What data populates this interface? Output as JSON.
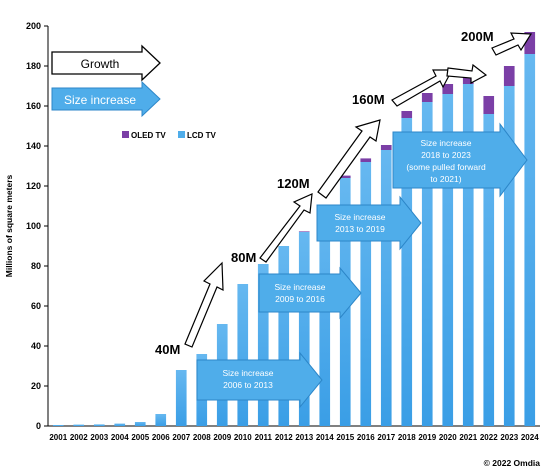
{
  "chart_data": {
    "type": "bar",
    "stacked": true,
    "title": "",
    "xlabel": "",
    "ylabel": "Millions of square meters",
    "ylim": [
      0,
      200
    ],
    "yticks": [
      0,
      20,
      40,
      60,
      80,
      100,
      120,
      140,
      160,
      180,
      200
    ],
    "categories": [
      "2001",
      "2002",
      "2003",
      "2004",
      "2005",
      "2006",
      "2007",
      "2008",
      "2009",
      "2010",
      "2011",
      "2012",
      "2013",
      "2014",
      "2015",
      "2016",
      "2017",
      "2018",
      "2019",
      "2020",
      "2021",
      "2022",
      "2023",
      "2024"
    ],
    "series": [
      {
        "name": "LCD TV",
        "color": "#4FADEA",
        "values": [
          0.5,
          0.7,
          0.8,
          1.2,
          2.0,
          6.0,
          28,
          36,
          51,
          71,
          81,
          90,
          97,
          110,
          124,
          132,
          138,
          154,
          162,
          166,
          171,
          156,
          170,
          186
        ]
      },
      {
        "name": "OLED TV",
        "color": "#7B3FA6",
        "values": [
          0,
          0,
          0,
          0,
          0,
          0,
          0,
          0,
          0,
          0,
          0,
          0,
          0.3,
          0.5,
          1.2,
          1.8,
          2.5,
          3.5,
          4.5,
          5,
          4,
          9,
          10,
          11
        ]
      }
    ],
    "legend": {
      "position": "top-left",
      "items": [
        "OLED TV",
        "LCD TV"
      ]
    },
    "grid": false
  },
  "annotations": {
    "growth_label": "Growth",
    "size_increase_label": "Size increase",
    "milestones": [
      "40M",
      "80M",
      "120M",
      "160M",
      "200M"
    ],
    "callouts": [
      {
        "lines": [
          "Size increase",
          "2006 to 2013"
        ]
      },
      {
        "lines": [
          "Size increase",
          "2009 to 2016"
        ]
      },
      {
        "lines": [
          "Size increase",
          "2013 to 2019"
        ]
      },
      {
        "lines": [
          "Size increase",
          "2018 to 2023",
          "(some pulled forward",
          "to 2021)"
        ]
      }
    ],
    "copyright": "© 2022 Omdia"
  }
}
